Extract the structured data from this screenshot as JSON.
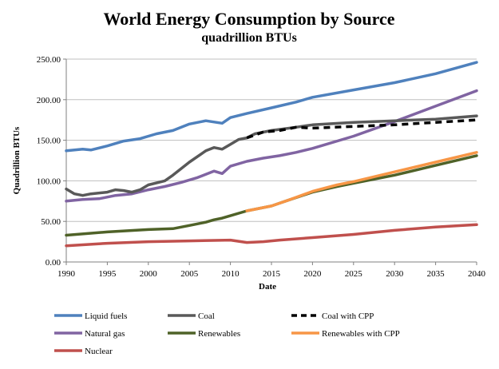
{
  "chart_data": {
    "type": "line",
    "title": "World Energy Consumption by Source",
    "subtitle": "quadrillion BTUs",
    "xlabel": "Date",
    "ylabel": "Quadrillion BTUs",
    "xlim": [
      1990,
      2040
    ],
    "ylim": [
      0,
      250
    ],
    "x_ticks": [
      "1990",
      "1995",
      "2000",
      "2005",
      "2010",
      "2015",
      "2020",
      "2025",
      "2030",
      "2035",
      "2040"
    ],
    "y_ticks": [
      "0.00",
      "50.00",
      "100.00",
      "150.00",
      "200.00",
      "250.00"
    ],
    "grid": "horizontal",
    "series": [
      {
        "name": "Liquid fuels",
        "color": "#4F81BD",
        "dash": "solid",
        "points": [
          [
            1990,
            137
          ],
          [
            1992,
            139
          ],
          [
            1993,
            138
          ],
          [
            1995,
            143
          ],
          [
            1997,
            149
          ],
          [
            1999,
            152
          ],
          [
            2001,
            158
          ],
          [
            2003,
            162
          ],
          [
            2005,
            170
          ],
          [
            2007,
            174
          ],
          [
            2009,
            171
          ],
          [
            2010,
            178
          ],
          [
            2012,
            183
          ],
          [
            2015,
            190
          ],
          [
            2018,
            197
          ],
          [
            2020,
            203
          ],
          [
            2025,
            212
          ],
          [
            2030,
            221
          ],
          [
            2035,
            232
          ],
          [
            2040,
            246
          ]
        ]
      },
      {
        "name": "Coal",
        "color": "#595959",
        "dash": "solid",
        "points": [
          [
            1990,
            90
          ],
          [
            1991,
            84
          ],
          [
            1992,
            82
          ],
          [
            1993,
            84
          ],
          [
            1995,
            86
          ],
          [
            1996,
            89
          ],
          [
            1997,
            88
          ],
          [
            1998,
            86
          ],
          [
            1999,
            89
          ],
          [
            2000,
            95
          ],
          [
            2002,
            100
          ],
          [
            2003,
            107
          ],
          [
            2005,
            123
          ],
          [
            2007,
            137
          ],
          [
            2008,
            141
          ],
          [
            2009,
            139
          ],
          [
            2010,
            145
          ],
          [
            2011,
            151
          ],
          [
            2012,
            153
          ],
          [
            2013,
            158
          ],
          [
            2015,
            162
          ],
          [
            2018,
            166
          ],
          [
            2020,
            169
          ],
          [
            2025,
            172
          ],
          [
            2030,
            174
          ],
          [
            2035,
            176
          ],
          [
            2040,
            180
          ]
        ]
      },
      {
        "name": "Coal with CPP",
        "color": "#000000",
        "dash": "dashed",
        "points": [
          [
            2012,
            153
          ],
          [
            2014,
            160
          ],
          [
            2016,
            162
          ],
          [
            2018,
            166
          ],
          [
            2020,
            165
          ],
          [
            2025,
            167
          ],
          [
            2030,
            169
          ],
          [
            2035,
            172
          ],
          [
            2040,
            175
          ]
        ]
      },
      {
        "name": "Natural gas",
        "color": "#8064A2",
        "dash": "solid",
        "points": [
          [
            1990,
            75
          ],
          [
            1992,
            77
          ],
          [
            1994,
            78
          ],
          [
            1996,
            82
          ],
          [
            1998,
            84
          ],
          [
            2000,
            89
          ],
          [
            2002,
            93
          ],
          [
            2004,
            98
          ],
          [
            2006,
            104
          ],
          [
            2008,
            112
          ],
          [
            2009,
            109
          ],
          [
            2010,
            118
          ],
          [
            2012,
            124
          ],
          [
            2014,
            128
          ],
          [
            2016,
            131
          ],
          [
            2018,
            135
          ],
          [
            2020,
            140
          ],
          [
            2025,
            155
          ],
          [
            2030,
            173
          ],
          [
            2035,
            192
          ],
          [
            2040,
            211
          ]
        ]
      },
      {
        "name": "Renewables",
        "color": "#4F6228",
        "dash": "solid",
        "points": [
          [
            1990,
            33
          ],
          [
            1995,
            37
          ],
          [
            2000,
            40
          ],
          [
            2003,
            41
          ],
          [
            2005,
            45
          ],
          [
            2007,
            49
          ],
          [
            2008,
            52
          ],
          [
            2009,
            54
          ],
          [
            2010,
            57
          ],
          [
            2012,
            63
          ],
          [
            2015,
            69
          ],
          [
            2017,
            76
          ],
          [
            2020,
            86
          ],
          [
            2023,
            93
          ],
          [
            2025,
            97
          ],
          [
            2030,
            107
          ],
          [
            2035,
            119
          ],
          [
            2040,
            131
          ]
        ]
      },
      {
        "name": "Renewables with CPP",
        "color": "#F79646",
        "dash": "solid",
        "points": [
          [
            2012,
            63
          ],
          [
            2015,
            69
          ],
          [
            2017,
            76
          ],
          [
            2020,
            87
          ],
          [
            2023,
            95
          ],
          [
            2025,
            99
          ],
          [
            2030,
            111
          ],
          [
            2035,
            123
          ],
          [
            2040,
            135
          ]
        ]
      },
      {
        "name": "Nuclear",
        "color": "#C0504D",
        "dash": "solid",
        "points": [
          [
            1990,
            20
          ],
          [
            1995,
            23
          ],
          [
            2000,
            25
          ],
          [
            2005,
            26
          ],
          [
            2010,
            27
          ],
          [
            2012,
            24
          ],
          [
            2014,
            25
          ],
          [
            2016,
            27
          ],
          [
            2020,
            30
          ],
          [
            2025,
            34
          ],
          [
            2030,
            39
          ],
          [
            2035,
            43
          ],
          [
            2040,
            46
          ]
        ]
      }
    ]
  }
}
